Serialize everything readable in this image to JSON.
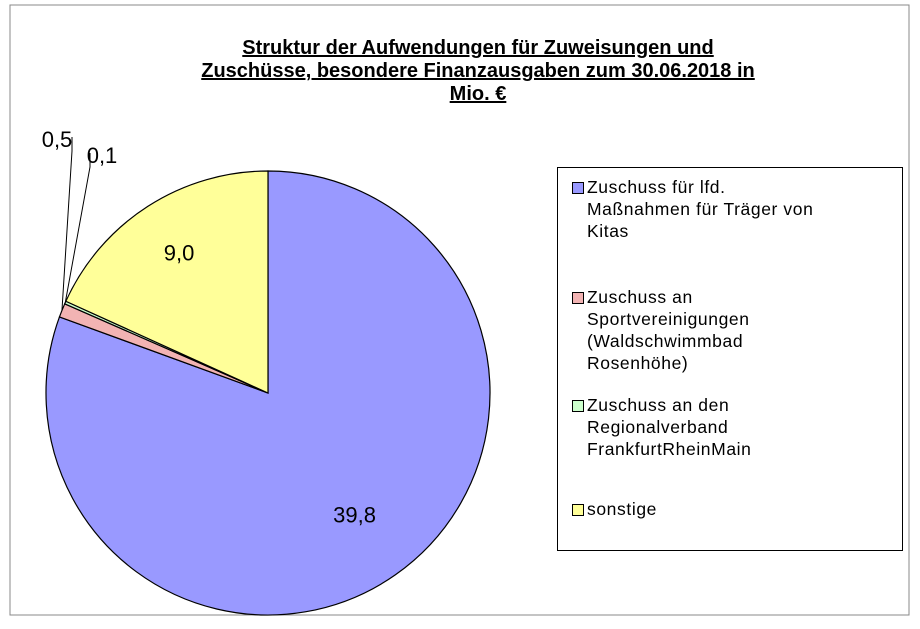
{
  "chart_data": {
    "type": "pie",
    "title": [
      "Struktur der Aufwendungen für Zuweisungen und",
      "Zuschüsse, besondere Finanzausgaben zum 30.06.2018 in",
      "Mio. €"
    ],
    "categories": [
      "Zuschuss für lfd. Maßnahmen für Träger von Kitas",
      "Zuschuss an Sportvereinigungen (Waldschwimmbad Rosenhöhe)",
      "Zuschuss an den Regionalverband FrankfurtRheinMain",
      "sonstige"
    ],
    "values": [
      39.8,
      0.5,
      0.1,
      9.0
    ],
    "value_labels": [
      "39,8",
      "0,5",
      "0,1",
      "9,0"
    ],
    "colors": [
      "#9999ff",
      "#f2b3b3",
      "#ccffcc",
      "#ffff99"
    ],
    "legend": "right"
  }
}
